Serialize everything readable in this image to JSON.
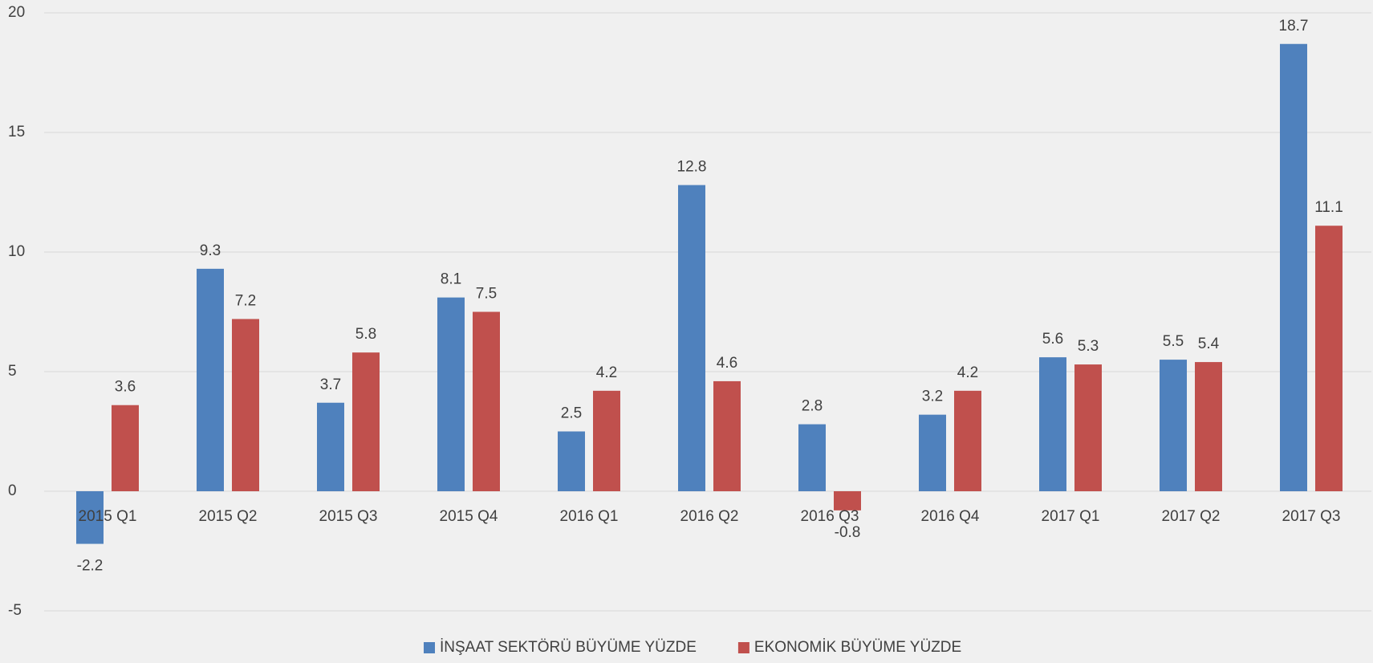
{
  "chart_data": {
    "type": "bar",
    "categories": [
      "2015 Q1",
      "2015 Q2",
      "2015 Q3",
      "2015 Q4",
      "2016 Q1",
      "2016 Q2",
      "2016 Q3",
      "2016 Q4",
      "2017 Q1",
      "2017 Q2",
      "2017 Q3"
    ],
    "series": [
      {
        "name": "İNŞAAT SEKTÖRÜ BÜYÜME YÜZDE",
        "color": "#4f81bd",
        "values": [
          -2.2,
          9.3,
          3.7,
          8.1,
          2.5,
          12.8,
          2.8,
          3.2,
          5.6,
          5.5,
          18.7
        ]
      },
      {
        "name": "EKONOMİK BÜYÜME YÜZDE",
        "color": "#c0504d",
        "values": [
          3.6,
          7.2,
          5.8,
          7.5,
          4.2,
          4.6,
          -0.8,
          4.2,
          5.3,
          5.4,
          11.1
        ]
      }
    ],
    "ylim": [
      -5,
      20
    ],
    "yticks": [
      -5,
      0,
      5,
      10,
      15,
      20
    ],
    "grid": true,
    "legend": "bottom"
  }
}
